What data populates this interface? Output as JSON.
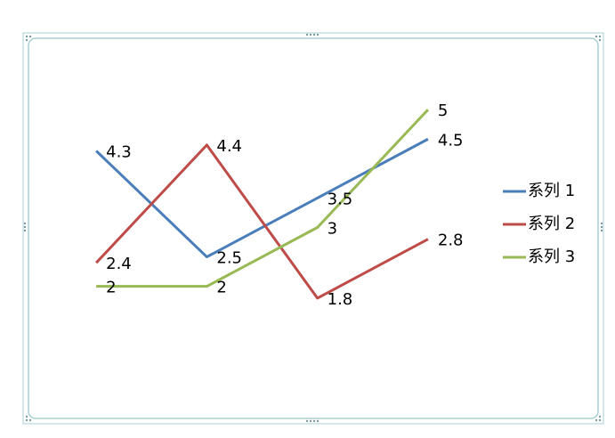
{
  "chart_data": {
    "type": "line",
    "categories": [
      null,
      null,
      null,
      null
    ],
    "ylim": [
      0,
      6
    ],
    "legend": "right",
    "series": [
      {
        "name": "系列 1",
        "color": "#4a7ebb",
        "values": [
          4.3,
          2.5,
          3.5,
          4.5
        ]
      },
      {
        "name": "系列 2",
        "color": "#be4b48",
        "values": [
          2.4,
          4.4,
          1.8,
          2.8
        ]
      },
      {
        "name": "系列 3",
        "color": "#98b954",
        "values": [
          2,
          2,
          3,
          5
        ]
      }
    ]
  }
}
